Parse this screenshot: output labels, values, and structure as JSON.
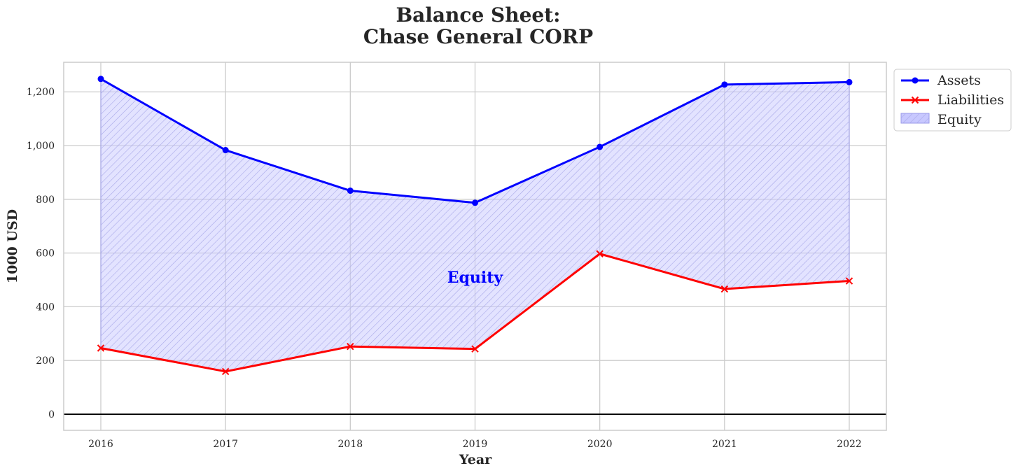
{
  "chart_data": {
    "type": "line",
    "title_line1": "Balance Sheet:",
    "title_line2": "Chase General CORP",
    "xlabel": "Year",
    "ylabel": "1000 USD",
    "x": [
      "2016",
      "2017",
      "2018",
      "2019",
      "2020",
      "2021",
      "2022"
    ],
    "ylim": [
      -60,
      1310
    ],
    "yticks": [
      0,
      200,
      400,
      600,
      800,
      1000,
      1200
    ],
    "ytick_labels": [
      "0",
      "200",
      "400",
      "600",
      "800",
      "1,000",
      "1,200"
    ],
    "grid": true,
    "legend_position": "outside-top-right",
    "series": [
      {
        "name": "Assets",
        "color": "#0000ff",
        "marker": "circle",
        "values": [
          1248,
          983,
          832,
          787,
          995,
          1227,
          1236
        ]
      },
      {
        "name": "Liabilities",
        "color": "#ff0000",
        "marker": "x",
        "values": [
          246,
          159,
          252,
          243,
          597,
          466,
          496
        ]
      }
    ],
    "fill": {
      "name": "Equity",
      "color": "#c8c8ff",
      "between": [
        "Assets",
        "Liabilities"
      ],
      "hatch": true
    },
    "annotation": {
      "text": "Equity",
      "x": 3,
      "y": 510,
      "color": "#0000ff"
    },
    "zero_line": true
  }
}
